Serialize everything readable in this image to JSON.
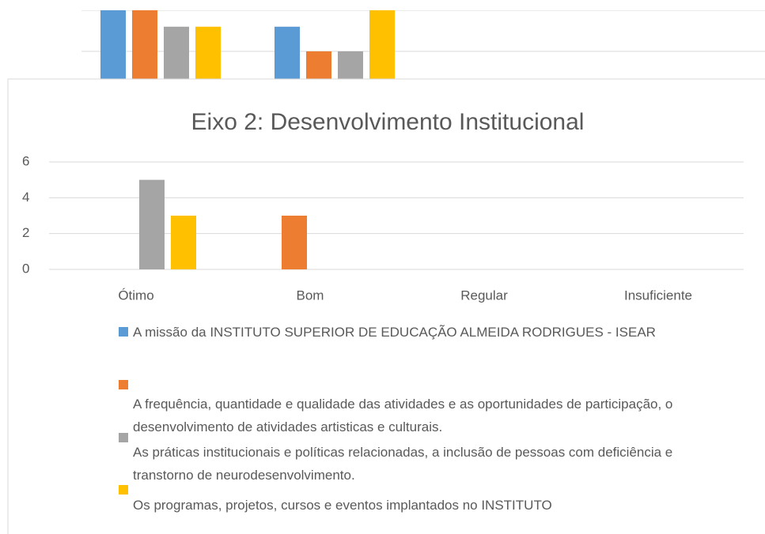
{
  "chart_data": [
    {
      "type": "bar",
      "categories": [
        null,
        null
      ],
      "series": [
        {
          "color": "#5b9bd5",
          "values": [
            4,
            3.2
          ]
        },
        {
          "color": "#ed7d31",
          "values": [
            4,
            2
          ]
        },
        {
          "color": "#a5a5a5",
          "values": [
            3.2,
            2
          ]
        },
        {
          "color": "#ffc000",
          "values": [
            3.2,
            4
          ]
        }
      ],
      "ylim": [
        0,
        4
      ],
      "yticks": [
        0,
        2,
        4
      ],
      "grid": true
    },
    {
      "type": "bar",
      "title": "Eixo 2: Desenvolvimento Institucional",
      "categories": [
        "Ótimo",
        "Bom",
        "Regular",
        "Insuficiente"
      ],
      "series": [
        {
          "name": "A missão da INSTITUTO SUPERIOR DE EDUCAÇÃO ALMEIDA RODRIGUES - ISEAR",
          "color": "#5b9bd5",
          "values": [
            0,
            0,
            0,
            0
          ]
        },
        {
          "name": "A frequência, quantidade e qualidade das atividades e as oportunidades de participação, o desenvolvimento de atividades artisticas e culturais.",
          "color": "#ed7d31",
          "values": [
            0,
            3,
            0,
            0
          ]
        },
        {
          "name": "As práticas institucionais e políticas relacionadas, a inclusão de pessoas com deficiência e transtorno de neurodesenvolvimento.",
          "color": "#a5a5a5",
          "values": [
            5,
            0,
            0,
            0
          ]
        },
        {
          "name": "Os programas, projetos, cursos e eventos implantados no INSTITUTO",
          "color": "#ffc000",
          "values": [
            3,
            0,
            0,
            0
          ]
        }
      ],
      "ylim": [
        0,
        6
      ],
      "yticks": [
        0,
        2,
        4,
        6
      ],
      "grid": true,
      "legend": "bottom"
    }
  ]
}
